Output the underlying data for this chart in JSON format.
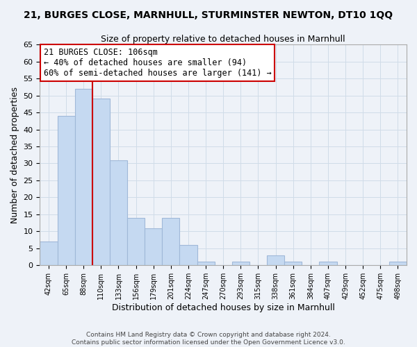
{
  "title": "21, BURGES CLOSE, MARNHULL, STURMINSTER NEWTON, DT10 1QQ",
  "subtitle": "Size of property relative to detached houses in Marnhull",
  "xlabel": "Distribution of detached houses by size in Marnhull",
  "ylabel": "Number of detached properties",
  "bar_color": "#c5d9f1",
  "bar_edge_color": "#a0b8d8",
  "grid_color": "#d0dce8",
  "bins": [
    "42sqm",
    "65sqm",
    "88sqm",
    "110sqm",
    "133sqm",
    "156sqm",
    "179sqm",
    "201sqm",
    "224sqm",
    "247sqm",
    "270sqm",
    "293sqm",
    "315sqm",
    "338sqm",
    "361sqm",
    "384sqm",
    "407sqm",
    "429sqm",
    "452sqm",
    "475sqm",
    "498sqm"
  ],
  "values": [
    7,
    44,
    52,
    49,
    31,
    14,
    11,
    14,
    6,
    1,
    0,
    1,
    0,
    3,
    1,
    0,
    1,
    0,
    0,
    0,
    1
  ],
  "ylim": [
    0,
    65
  ],
  "yticks": [
    0,
    5,
    10,
    15,
    20,
    25,
    30,
    35,
    40,
    45,
    50,
    55,
    60,
    65
  ],
  "ref_line_color": "#cc0000",
  "annotation_text": "21 BURGES CLOSE: 106sqm\n← 40% of detached houses are smaller (94)\n60% of semi-detached houses are larger (141) →",
  "annotation_box_color": "#ffffff",
  "annotation_box_edge_color": "#cc0000",
  "footer_line1": "Contains HM Land Registry data © Crown copyright and database right 2024.",
  "footer_line2": "Contains public sector information licensed under the Open Government Licence v3.0.",
  "background_color": "#eef2f8",
  "plot_bg_color": "#eef2f8"
}
